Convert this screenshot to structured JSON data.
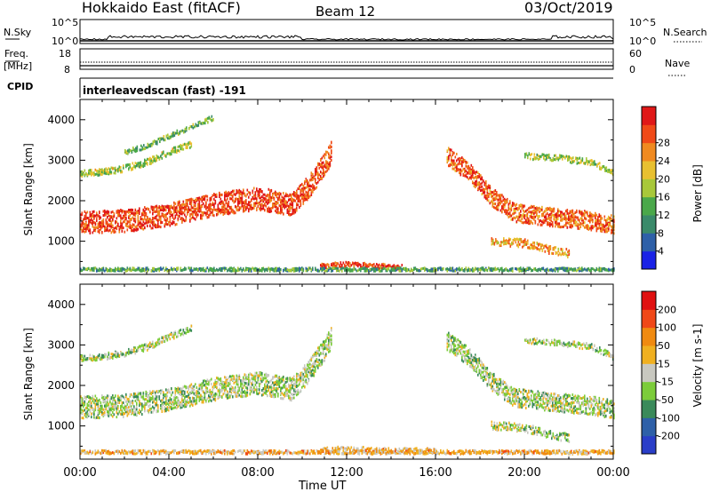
{
  "header": {
    "title": "Hokkaido East (fitACF)",
    "beam": "Beam 12",
    "date": "03/Oct/2019"
  },
  "top_strip": {
    "nsky_label": "N.Sky",
    "nsky_ticks": [
      "10^5",
      "10^0"
    ],
    "nsearch_label": "N.Search",
    "nsearch_ticks": [
      "10^5",
      "10^0"
    ],
    "freq_label": "Freq.",
    "freq_unit": "[MHz]",
    "freq_ticks": [
      "18",
      "8"
    ],
    "nave_label": "Nave",
    "nave_ticks": [
      "60",
      "0"
    ],
    "cpid_label": "CPID",
    "cpid_text": "interleavedscan (fast) -191"
  },
  "x_axis": {
    "label": "Time UT",
    "ticks": [
      "00:00",
      "04:00",
      "08:00",
      "12:00",
      "16:00",
      "20:00",
      "00:00"
    ]
  },
  "chart_data": [
    {
      "type": "heatmap",
      "ylabel": "Slant Range [km]",
      "yticks": [
        1000,
        2000,
        3000,
        4000
      ],
      "ylim": [
        180,
        4500
      ],
      "xlim_hours": [
        0,
        24
      ],
      "colorbar": {
        "label": "Power [dB]",
        "ticks": [
          "4",
          "8",
          "12",
          "16",
          "20",
          "24",
          "28"
        ],
        "colors": [
          "#1a22e6",
          "#2e60a8",
          "#3a8a6a",
          "#4aa84a",
          "#a8c83a",
          "#e8c030",
          "#f08a20",
          "#f04a18",
          "#e01818"
        ]
      },
      "regions": [
        {
          "name": "low-band",
          "points": [
            [
              0,
              1450
            ],
            [
              2,
              1500
            ],
            [
              4,
              1650
            ],
            [
              6,
              1900
            ],
            [
              8,
              2050
            ],
            [
              9.5,
              1900
            ],
            [
              10.3,
              2350
            ],
            [
              11,
              2900
            ],
            [
              11.3,
              3200
            ]
          ],
          "width": 550,
          "level": 0.85
        },
        {
          "name": "upper-streak",
          "points": [
            [
              0,
              2680
            ],
            [
              1,
              2700
            ],
            [
              2,
              2800
            ],
            [
              3,
              2950
            ],
            [
              4,
              3200
            ],
            [
              5,
              3400
            ]
          ],
          "width": 160,
          "level": 0.5
        },
        {
          "name": "mid-streak",
          "points": [
            [
              2,
              3200
            ],
            [
              3,
              3350
            ],
            [
              4,
              3600
            ],
            [
              6,
              4050
            ]
          ],
          "width": 120,
          "level": 0.4
        },
        {
          "name": "late-band",
          "points": [
            [
              16.5,
              3100
            ],
            [
              17.5,
              2700
            ],
            [
              18.5,
              2100
            ],
            [
              19.5,
              1700
            ],
            [
              21,
              1600
            ],
            [
              23,
              1500
            ],
            [
              24,
              1400
            ]
          ],
          "width": 450,
          "level": 0.8
        },
        {
          "name": "late-lower",
          "points": [
            [
              18.5,
              1000
            ],
            [
              20,
              950
            ],
            [
              21,
              800
            ],
            [
              22,
              700
            ]
          ],
          "width": 200,
          "level": 0.7
        },
        {
          "name": "late-upper",
          "points": [
            [
              20,
              3100
            ],
            [
              21.5,
              3050
            ],
            [
              23,
              2950
            ],
            [
              24,
              2700
            ]
          ],
          "width": 150,
          "level": 0.5
        },
        {
          "name": "noon-ground",
          "points": [
            [
              10.8,
              380
            ],
            [
              12,
              430
            ],
            [
              13.5,
              380
            ],
            [
              14.5,
              360
            ]
          ],
          "width": 120,
          "level": 0.9
        },
        {
          "name": "bottom-line",
          "points": [
            [
              0,
              300
            ],
            [
              12,
              300
            ],
            [
              24,
              300
            ]
          ],
          "width": 80,
          "level": 0.35
        }
      ]
    },
    {
      "type": "heatmap",
      "ylabel": "Slant Range [km]",
      "yticks": [
        1000,
        2000,
        3000,
        4000
      ],
      "ylim": [
        180,
        4500
      ],
      "xlim_hours": [
        0,
        24
      ],
      "colorbar": {
        "label": "Velocity [m s-1]",
        "ticks": [
          "200",
          "100",
          "50",
          "15",
          "-15",
          "-50",
          "-100",
          "-200"
        ],
        "colors": [
          "#2a3ec8",
          "#2e60a8",
          "#3a8a5a",
          "#7ccc3a",
          "#c8c8c0",
          "#f0b020",
          "#f08a10",
          "#f04818",
          "#e01010"
        ]
      },
      "regions": [
        {
          "name": "low-band",
          "points": [
            [
              0,
              1450
            ],
            [
              2,
              1500
            ],
            [
              4,
              1650
            ],
            [
              6,
              1900
            ],
            [
              8,
              2050
            ],
            [
              9.5,
              1900
            ],
            [
              10.3,
              2350
            ],
            [
              11,
              2900
            ],
            [
              11.3,
              3200
            ]
          ],
          "width": 550,
          "level": 0.45
        },
        {
          "name": "upper-streak",
          "points": [
            [
              0,
              2680
            ],
            [
              1,
              2700
            ],
            [
              2,
              2800
            ],
            [
              3,
              2950
            ],
            [
              4,
              3200
            ],
            [
              5,
              3400
            ]
          ],
          "width": 160,
          "level": 0.45
        },
        {
          "name": "late-band",
          "points": [
            [
              16.5,
              3100
            ],
            [
              17.5,
              2700
            ],
            [
              18.5,
              2100
            ],
            [
              19.5,
              1700
            ],
            [
              21,
              1600
            ],
            [
              23,
              1500
            ],
            [
              24,
              1400
            ]
          ],
          "width": 450,
          "level": 0.45
        },
        {
          "name": "late-lower",
          "points": [
            [
              18.5,
              1000
            ],
            [
              20,
              950
            ],
            [
              21,
              800
            ],
            [
              22,
              700
            ]
          ],
          "width": 200,
          "level": 0.45
        },
        {
          "name": "late-upper",
          "points": [
            [
              20,
              3100
            ],
            [
              21.5,
              3050
            ],
            [
              23,
              2950
            ],
            [
              24,
              2700
            ]
          ],
          "width": 150,
          "level": 0.45
        },
        {
          "name": "noon-ground",
          "points": [
            [
              10.8,
              380
            ],
            [
              12,
              430
            ],
            [
              13.5,
              380
            ],
            [
              16,
              380
            ]
          ],
          "width": 140,
          "level": 0.62
        },
        {
          "name": "bottom-line",
          "points": [
            [
              0,
              350
            ],
            [
              12,
              350
            ],
            [
              24,
              350
            ]
          ],
          "width": 90,
          "level": 0.62
        }
      ]
    }
  ]
}
